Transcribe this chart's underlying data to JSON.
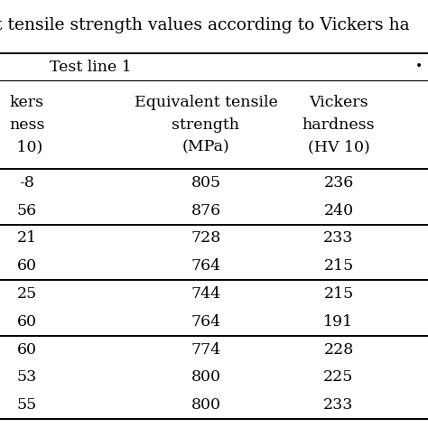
{
  "title": "t tensile strength values according to Vickers ha",
  "section_header": "Test line 1",
  "col1_header": [
    "kers",
    "ness",
    " 10)"
  ],
  "col2_header": [
    "Equivalent tensile",
    "strength",
    "(MPa)"
  ],
  "col3_header": [
    "Vickers",
    "hardness",
    "(HV 10)"
  ],
  "col1_vals": [
    "-8",
    "56",
    "21",
    "60",
    "25",
    "60",
    "60",
    "53",
    "55"
  ],
  "col2_vals": [
    "805",
    "876",
    "728",
    "764",
    "744",
    "764",
    "774",
    "800",
    "800"
  ],
  "col3_vals": [
    "236",
    "240",
    "233",
    "215",
    "215",
    "191",
    "228",
    "225",
    "233"
  ],
  "row_groups": [
    2,
    2,
    2,
    3
  ],
  "bg_color": "#ffffff",
  "text_color": "#000000",
  "font_size": 12.5,
  "header_font_size": 12.5,
  "title_font_size": 13.5
}
